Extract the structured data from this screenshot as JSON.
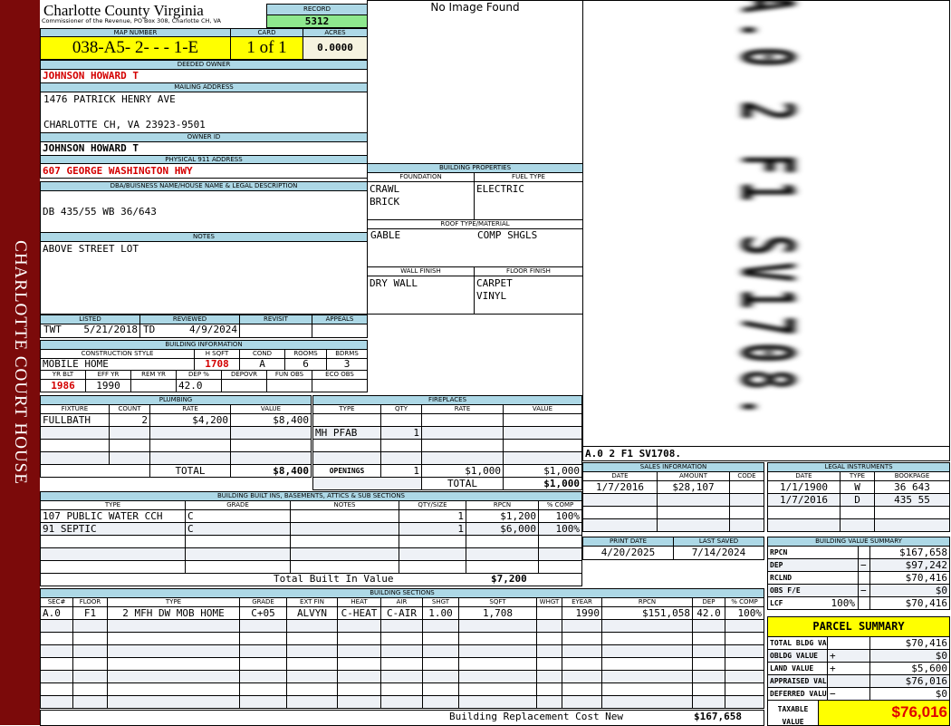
{
  "sidebar_title": "CHARLOTTE COURT HOUSE",
  "header": {
    "county": "Charlotte County Virginia",
    "subtitle": "Commissioner of the Revenue, PO Box 308, Charlotte CH, VA",
    "record_label": "RECORD",
    "record": "5312"
  },
  "parcel": {
    "map_label": "MAP NUMBER",
    "map": "038-A5- 2-  -  -  1-E",
    "card_label": "CARD",
    "card": "1 of 1",
    "acres_label": "ACRES",
    "acres": "0.0000"
  },
  "owner": {
    "deeded_label": "DEEDED OWNER",
    "deeded": "JOHNSON HOWARD T",
    "mailing_label": "MAILING ADDRESS",
    "mailing_line1": "1476 PATRICK HENRY AVE",
    "mailing_line2": "CHARLOTTE CH, VA 23923-9501",
    "id_label": "OWNER ID",
    "id": "JOHNSON HOWARD T",
    "address_label": "PHYSICAL 911 ADDRESS",
    "address": "607 GEORGE WASHINGTON  HWY"
  },
  "dba": {
    "label": "DBA/BUISNESS NAME/HOUSE NAME & LEGAL DESCRIPTION",
    "value": "DB 435/55 WB 36/643"
  },
  "notes": {
    "label": "NOTES",
    "value": "ABOVE STREET LOT"
  },
  "review": {
    "headers": [
      "LISTED",
      "REVIEWED",
      "REVISIT",
      "APPEALS"
    ],
    "listed_by": "TWT",
    "listed": "5/21/2018",
    "reviewed_by": "TD",
    "reviewed": "4/9/2024"
  },
  "building_info": {
    "label": "BUILDING INFORMATION",
    "headers1": [
      "CONSTRUCTION STYLE",
      "H SQFT",
      "COND",
      "ROOMS",
      "BDRMS"
    ],
    "rows1": [
      [
        "MOBILE HOME",
        "1708",
        "A",
        "6",
        "3"
      ]
    ],
    "headers2": [
      "YR BLT",
      "EFF YR",
      "REM YR",
      "DEP %",
      "DEPOVR",
      "FUN OBS",
      "ECO OBS"
    ],
    "rows2": [
      [
        "1986",
        "1990",
        "",
        "42.0",
        "",
        "",
        ""
      ]
    ]
  },
  "plumbing": {
    "label": "PLUMBING",
    "headers": [
      "FIXTURE",
      "COUNT",
      "RATE",
      "VALUE"
    ],
    "rows": [
      [
        "FULLBATH",
        "2",
        "$4,200",
        "$8,400"
      ]
    ],
    "total_label": "TOTAL",
    "total": "$8,400"
  },
  "fireplaces": {
    "label": "FIREPLACES",
    "headers": [
      "TYPE",
      "QTY",
      "RATE",
      "VALUE"
    ],
    "rows": [
      [
        "",
        "",
        "",
        ""
      ],
      [
        "MH PFAB",
        "1",
        "",
        ""
      ]
    ],
    "openings": [
      "OPENINGS",
      "1",
      "$1,000",
      "$1,000"
    ],
    "total_label": "TOTAL",
    "total": "$1,000"
  },
  "built_ins": {
    "label": "BUILDING BUILT INS, BASEMENTS, ATTICS & SUB SECTIONS",
    "headers": [
      "TYPE",
      "GRADE",
      "NOTES",
      "QTY/SIZE",
      "RPCN",
      "% COMP"
    ],
    "rows": [
      [
        "107 PUBLIC WATER CCH",
        "C",
        "",
        "1",
        "$1,200",
        "100%"
      ],
      [
        "91 SEPTIC",
        "C",
        "",
        "1",
        "$6,000",
        "100%"
      ]
    ],
    "total_label": "Total Built In Value",
    "total": "$7,200"
  },
  "sections": {
    "label": "BUILDING SECTIONS",
    "headers": [
      "SEC#",
      "FLOOR",
      "TYPE",
      "GRADE",
      "EXT FIN",
      "HEAT",
      "AIR",
      "SHGT",
      "SQFT",
      "WHGT",
      "EYEAR",
      "RPCN",
      "DEP",
      "% COMP"
    ],
    "rows": [
      [
        "A.0",
        "F1",
        "2 MFH DW MOB HOME",
        "C+05",
        "ALVYN",
        "C-HEAT",
        "C-AIR",
        "1.00",
        "1,708",
        "",
        "1990",
        "$151,058",
        "42.0",
        "100%"
      ]
    ],
    "total_label": "Building Replacement Cost New",
    "total": "$167,658"
  },
  "image": {
    "placeholder": "No Image Found"
  },
  "properties": {
    "label": "BUILDING PROPERTIES",
    "foundation_label": "FOUNDATION",
    "foundation": "CRAWL\nBRICK",
    "fuel_label": "FUEL TYPE",
    "fuel": "ELECTRIC",
    "roof_label": "ROOF TYPE/MATERIAL",
    "roof_type": "GABLE",
    "roof_material": "COMP SHGLS",
    "wall_label": "WALL FINISH",
    "wall": "DRY WALL",
    "floor_label": "FLOOR FINISH",
    "floor": "CARPET\nVINYL"
  },
  "sketch": {
    "code": "A.0  2    F1   SV1708."
  },
  "sales": {
    "label": "SALES INFORMATION",
    "headers": [
      "DATE",
      "AMOUNT",
      "CODE"
    ],
    "rows": [
      [
        "1/7/2016",
        "$28,107",
        ""
      ]
    ]
  },
  "legal": {
    "label": "LEGAL INSTRUMENTS",
    "headers": [
      "DATE",
      "TYPE",
      "BOOKPAGE"
    ],
    "rows": [
      [
        "1/1/1900",
        "W",
        "36 643"
      ],
      [
        "1/7/2016",
        "D",
        "435 55"
      ]
    ]
  },
  "dates": {
    "headers": [
      "PRINT DATE",
      "LAST SAVED"
    ],
    "rows": [
      [
        "4/20/2025",
        "7/14/2024"
      ]
    ]
  },
  "value_summary": {
    "label": "BUILDING VALUE SUMMARY",
    "rows": [
      [
        "RPCN",
        "",
        "$167,658"
      ],
      [
        "DEP",
        "−",
        "$97,242"
      ],
      [
        "RCLND",
        "",
        "$70,416"
      ],
      [
        "OBS F/E",
        "−",
        "$0"
      ],
      [
        "LCF",
        "",
        "$70,416"
      ]
    ],
    "lcf_pct": "100%"
  },
  "parcel_summary": {
    "title": "PARCEL SUMMARY",
    "rows": [
      [
        "TOTAL BLDG VALUE",
        "",
        "$70,416"
      ],
      [
        "OBLDG VALUE",
        "+",
        "$0"
      ],
      [
        "LAND VALUE",
        "+",
        "$5,600"
      ],
      [
        "APPRAISED VALUE",
        "",
        "$76,016"
      ],
      [
        "DEFERRED VALUE",
        "−",
        "$0"
      ]
    ],
    "taxable_label": "TAXABLE\nVALUE",
    "taxable": "$76,016"
  },
  "colors": {
    "label_bar": "#add8e6",
    "highlight": "#ffff00",
    "record": "#8ee88e",
    "accent_red": "#d40000",
    "sidebar": "#7b0a0a"
  }
}
